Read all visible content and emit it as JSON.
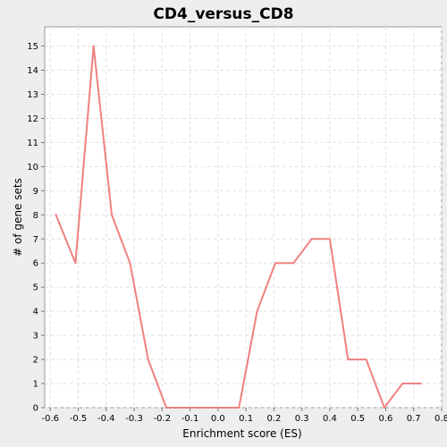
{
  "chart_data": {
    "type": "line",
    "title": "CD4_versus_CD8",
    "xlabel": "Enrichment score (ES)",
    "ylabel": "# of gene sets",
    "xlim": [
      -0.62,
      0.8
    ],
    "ylim": [
      0,
      15.8
    ],
    "x_ticks": [
      "-0.6",
      "-0.5",
      "-0.4",
      "-0.3",
      "-0.2",
      "-0.1",
      "0.0",
      "0.1",
      "0.2",
      "0.3",
      "0.4",
      "0.5",
      "0.6",
      "0.7",
      "0.8"
    ],
    "y_ticks": [
      "0",
      "1",
      "2",
      "3",
      "4",
      "5",
      "6",
      "7",
      "8",
      "9",
      "10",
      "11",
      "12",
      "13",
      "14",
      "15"
    ],
    "grid": true,
    "legend": "none",
    "series": [
      {
        "color": "#f08080",
        "x": [
          -0.58,
          -0.51,
          -0.445,
          -0.38,
          -0.315,
          -0.25,
          -0.185,
          -0.12,
          -0.055,
          0.01,
          0.075,
          0.14,
          0.205,
          0.27,
          0.335,
          0.4,
          0.465,
          0.53,
          0.595,
          0.66,
          0.725
        ],
        "y": [
          8,
          6,
          15,
          8,
          6,
          2,
          0,
          0,
          0,
          0,
          0,
          4,
          6,
          6,
          7,
          7,
          2,
          2,
          0,
          1,
          1
        ]
      }
    ]
  }
}
